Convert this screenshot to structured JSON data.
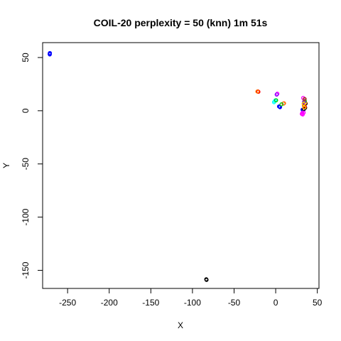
{
  "chart_data": {
    "type": "scatter",
    "title": "COIL-20 perplexity = 50 (knn) 1m 51s",
    "xlabel": "X",
    "ylabel": "Y",
    "xlim": [
      -280,
      52
    ],
    "ylim": [
      -167,
      64
    ],
    "xticks": [
      -250,
      -200,
      -150,
      -100,
      -50,
      0,
      50
    ],
    "yticks": [
      -150,
      -100,
      -50,
      0,
      50
    ],
    "grid": false,
    "legend": "none",
    "series": [
      {
        "color": "#0000ff",
        "points": [
          [
            -271.5,
            53.5
          ],
          [
            -271.3,
            54.2
          ],
          [
            -271.4,
            52.9
          ],
          [
            4,
            4
          ],
          [
            4.7,
            3.8
          ],
          [
            5.2,
            3.3
          ],
          [
            32.3,
            1
          ],
          [
            33.1,
            0.4
          ]
        ]
      },
      {
        "color": "#000000",
        "points": [
          [
            -83.4,
            -158.4
          ],
          [
            -83.1,
            -159
          ],
          [
            34.2,
            4
          ],
          [
            33.9,
            1.5
          ],
          [
            35.4,
            2.8
          ],
          [
            36,
            6.8
          ]
        ]
      },
      {
        "color": "#ff0000",
        "points": [
          [
            -21.5,
            18.2
          ],
          [
            -20.8,
            17.8
          ],
          [
            9.5,
            6.8
          ],
          [
            34,
            5
          ],
          [
            35,
            3.5
          ]
        ]
      },
      {
        "color": "#ff7f00",
        "points": [
          [
            -22,
            18
          ],
          [
            10,
            7
          ],
          [
            34.5,
            10
          ],
          [
            35.5,
            7.5
          ]
        ]
      },
      {
        "color": "#00ffff",
        "points": [
          [
            -2,
            8
          ],
          [
            -1.2,
            8.9
          ],
          [
            -0.3,
            9.8
          ]
        ]
      },
      {
        "color": "#00cd00",
        "points": [
          [
            0.5,
            9.8
          ],
          [
            7,
            6
          ],
          [
            35,
            9
          ]
        ]
      },
      {
        "color": "#ff00ff",
        "points": [
          [
            2,
            16
          ],
          [
            32,
            -2
          ],
          [
            32.5,
            -3.5
          ],
          [
            33,
            12
          ],
          [
            31.4,
            -3
          ],
          [
            33.6,
            -1.8
          ]
        ]
      },
      {
        "color": "#8000ff",
        "points": [
          [
            1.2,
            15.2
          ],
          [
            34,
            8
          ]
        ]
      },
      {
        "color": "#ffd700",
        "points": [
          [
            33.5,
            6.5
          ],
          [
            34.2,
            3
          ]
        ]
      },
      {
        "color": "#a52a2a",
        "points": [
          [
            34.8,
            11
          ]
        ]
      }
    ]
  }
}
